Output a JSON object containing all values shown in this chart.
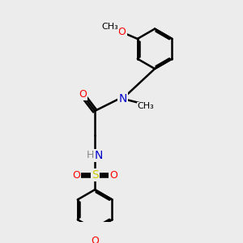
{
  "bg_color": "#ececec",
  "bond_color": "#000000",
  "atom_colors": {
    "O": "#ff0000",
    "N": "#0000cd",
    "S": "#cccc00",
    "H": "#888888",
    "C": "#000000"
  },
  "line_width": 1.8,
  "dbl_off": 0.07,
  "font_size": 9
}
